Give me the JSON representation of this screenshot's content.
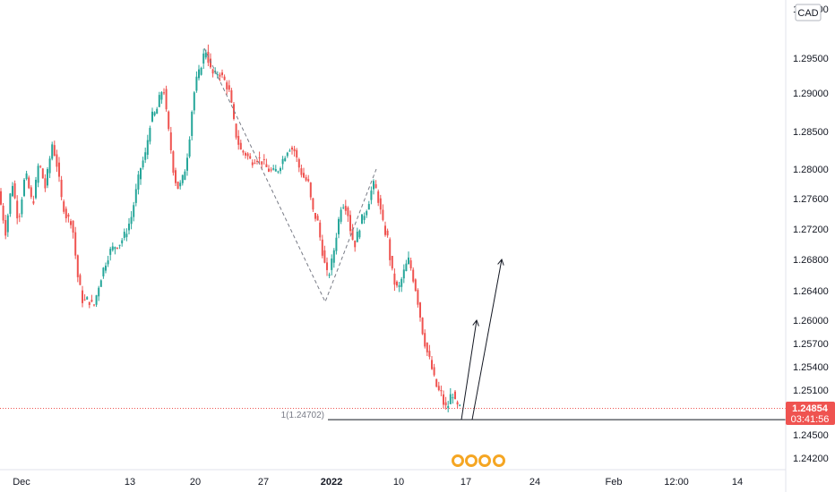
{
  "chart_data": {
    "type": "candlestick",
    "currency_label": "CAD",
    "y_ticks": [
      "1.30000",
      "1.29500",
      "1.29000",
      "1.28500",
      "1.28000",
      "1.27600",
      "1.27200",
      "1.26800",
      "1.26400",
      "1.26000",
      "1.25700",
      "1.25400",
      "1.25100",
      "1.24500",
      "1.24200"
    ],
    "x_ticks": [
      {
        "label": "Dec",
        "bold": false
      },
      {
        "label": "13",
        "bold": false
      },
      {
        "label": "20",
        "bold": false
      },
      {
        "label": "27",
        "bold": false
      },
      {
        "label": "2022",
        "bold": true
      },
      {
        "label": "10",
        "bold": false
      },
      {
        "label": "17",
        "bold": false
      },
      {
        "label": "24",
        "bold": false
      },
      {
        "label": "Feb",
        "bold": false
      },
      {
        "label": "12:00",
        "bold": false
      },
      {
        "label": "14",
        "bold": false
      }
    ],
    "current_price": "1.24854",
    "countdown": "03:41:56",
    "level_label": "1(1.24702)",
    "colors": {
      "up": "#26a69a",
      "down": "#ef5350",
      "price_tag": "#ef5350",
      "dashed": "#787b86",
      "line": "#131722"
    },
    "price_path": [
      [
        0,
        1.277
      ],
      [
        8,
        1.2715
      ],
      [
        15,
        1.2785
      ],
      [
        22,
        1.273
      ],
      [
        30,
        1.2795
      ],
      [
        38,
        1.275
      ],
      [
        45,
        1.281
      ],
      [
        52,
        1.2775
      ],
      [
        60,
        1.2835
      ],
      [
        66,
        1.28
      ],
      [
        70,
        1.276
      ],
      [
        76,
        1.2735
      ],
      [
        82,
        1.273
      ],
      [
        88,
        1.266
      ],
      [
        94,
        1.2625
      ],
      [
        100,
        1.2628
      ],
      [
        106,
        1.2618
      ],
      [
        112,
        1.2648
      ],
      [
        118,
        1.2672
      ],
      [
        124,
        1.269
      ],
      [
        130,
        1.2698
      ],
      [
        136,
        1.2702
      ],
      [
        142,
        1.2715
      ],
      [
        148,
        1.2735
      ],
      [
        152,
        1.276
      ],
      [
        158,
        1.28
      ],
      [
        164,
        1.282
      ],
      [
        170,
        1.2868
      ],
      [
        176,
        1.2875
      ],
      [
        180,
        1.2895
      ],
      [
        184,
        1.291
      ],
      [
        188,
        1.2865
      ],
      [
        192,
        1.283
      ],
      [
        196,
        1.279
      ],
      [
        200,
        1.2775
      ],
      [
        204,
        1.278
      ],
      [
        208,
        1.28
      ],
      [
        212,
        1.283
      ],
      [
        216,
        1.288
      ],
      [
        220,
        1.2915
      ],
      [
        224,
        1.293
      ],
      [
        228,
        1.295
      ],
      [
        232,
        1.296
      ],
      [
        236,
        1.2935
      ],
      [
        240,
        1.2925
      ],
      [
        246,
        1.293
      ],
      [
        252,
        1.2918
      ],
      [
        258,
        1.29
      ],
      [
        264,
        1.285
      ],
      [
        270,
        1.2825
      ],
      [
        276,
        1.282
      ],
      [
        282,
        1.281
      ],
      [
        288,
        1.2815
      ],
      [
        294,
        1.281
      ],
      [
        300,
        1.28
      ],
      [
        306,
        1.2795
      ],
      [
        312,
        1.28
      ],
      [
        318,
        1.2815
      ],
      [
        324,
        1.283
      ],
      [
        330,
        1.2825
      ],
      [
        336,
        1.28
      ],
      [
        340,
        1.279
      ],
      [
        346,
        1.278
      ],
      [
        350,
        1.2745
      ],
      [
        356,
        1.273
      ],
      [
        360,
        1.27
      ],
      [
        366,
        1.266
      ],
      [
        370,
        1.2665
      ],
      [
        374,
        1.269
      ],
      [
        378,
        1.272
      ],
      [
        382,
        1.275
      ],
      [
        386,
        1.2755
      ],
      [
        390,
        1.274
      ],
      [
        394,
        1.271
      ],
      [
        398,
        1.27
      ],
      [
        402,
        1.272
      ],
      [
        406,
        1.2735
      ],
      [
        410,
        1.2745
      ],
      [
        414,
        1.276
      ],
      [
        418,
        1.278
      ],
      [
        422,
        1.277
      ],
      [
        426,
        1.2745
      ],
      [
        430,
        1.272
      ],
      [
        434,
        1.271
      ],
      [
        438,
        1.267
      ],
      [
        442,
        1.265
      ],
      [
        446,
        1.264
      ],
      [
        450,
        1.2655
      ],
      [
        454,
        1.267
      ],
      [
        458,
        1.268
      ],
      [
        462,
        1.266
      ],
      [
        466,
        1.264
      ],
      [
        470,
        1.261
      ],
      [
        474,
        1.258
      ],
      [
        478,
        1.256
      ],
      [
        482,
        1.2545
      ],
      [
        486,
        1.2525
      ],
      [
        490,
        1.251
      ],
      [
        494,
        1.2505
      ],
      [
        498,
        1.2485
      ],
      [
        502,
        1.249
      ],
      [
        506,
        1.251
      ],
      [
        510,
        1.249
      ],
      [
        514,
        1.2485
      ]
    ],
    "dashed_pattern": [
      [
        228,
        1.296
      ],
      [
        363,
        1.2625
      ],
      [
        420,
        1.28
      ]
    ],
    "arrows": [
      {
        "from": [
          515,
          1.24702
        ],
        "to": [
          532,
          1.26
        ]
      },
      {
        "from": [
          527,
          1.24702
        ],
        "to": [
          560,
          1.268
        ]
      }
    ],
    "level_price": 1.24702,
    "current_price_value": 1.24854,
    "level_line_start_x": 366
  }
}
